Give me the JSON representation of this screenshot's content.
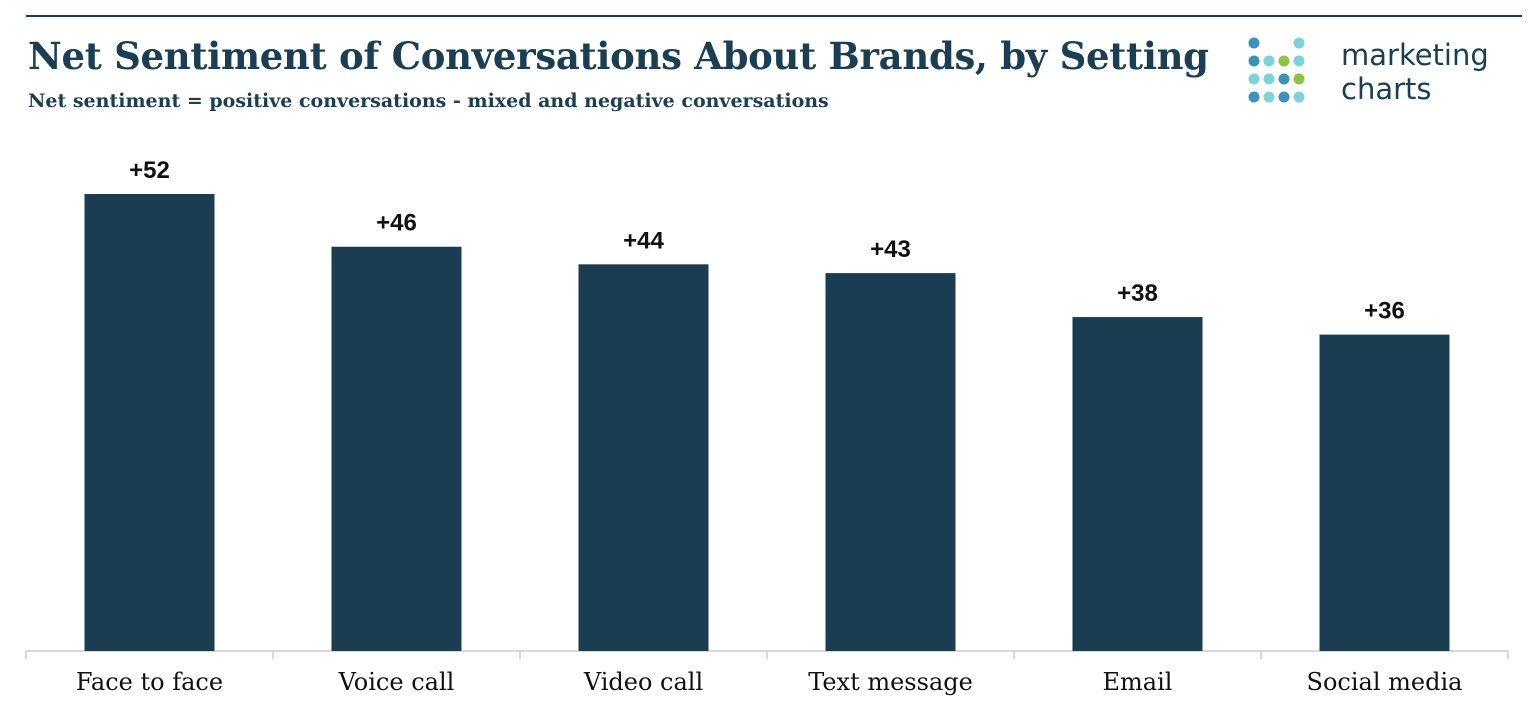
{
  "header": {
    "title": "Net Sentiment of Conversations About Brands, by Setting",
    "subtitle": "Net sentiment = positive conversations - mixed and negative conversations"
  },
  "logo": {
    "line1": "marketing",
    "line2": "charts",
    "colors": {
      "blue": "#3b94b8",
      "teal": "#7dd3d8",
      "green": "#8cc43f",
      "text": "#1b3e52"
    }
  },
  "chart_data": {
    "type": "bar",
    "categories": [
      "Face to face",
      "Voice call",
      "Video call",
      "Text message",
      "Email",
      "Social media"
    ],
    "values": [
      52,
      46,
      44,
      43,
      38,
      36
    ],
    "value_labels": [
      "+52",
      "+46",
      "+44",
      "+43",
      "+38",
      "+36"
    ],
    "bar_color": "#1b3d51",
    "axis_color": "#cccccc",
    "grid": false,
    "legend": "none",
    "ylim": [
      0,
      55
    ]
  }
}
